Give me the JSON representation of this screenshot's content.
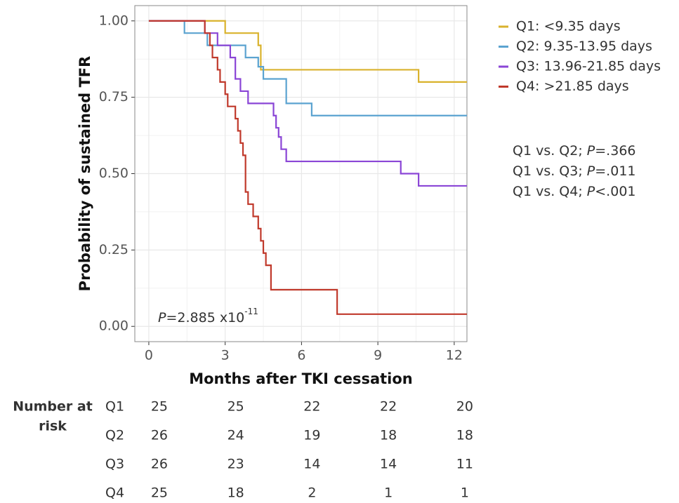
{
  "chart_data": {
    "type": "step",
    "xlabel": "Months after TKI cessation",
    "ylabel": "Probability  of sustained TFR",
    "xlim": [
      -0.55,
      12.5
    ],
    "ylim": [
      -0.05,
      1.05
    ],
    "xticks": [
      0,
      3,
      6,
      9,
      12
    ],
    "yticks": [
      {
        "value": 0,
        "label": "0.00"
      },
      {
        "value": 0.25,
        "label": "0.25"
      },
      {
        "value": 0.5,
        "label": "0.50"
      },
      {
        "value": 0.75,
        "label": "0.75"
      },
      {
        "value": 1,
        "label": "1.00"
      }
    ],
    "grid": true,
    "series": [
      {
        "name": "Q1: <9.35 days",
        "color": "#d9b22c",
        "x": [
          0,
          3.0,
          4.3,
          4.4,
          10.6,
          12.5
        ],
        "values": [
          1,
          0.96,
          0.92,
          0.84,
          0.8,
          0.8
        ]
      },
      {
        "name": "Q2: 9.35-13.95 days",
        "color": "#5ba3d0",
        "x": [
          0,
          1.4,
          2.3,
          3.8,
          4.3,
          4.5,
          5.4,
          6.4,
          12.5
        ],
        "values": [
          1,
          0.96,
          0.92,
          0.88,
          0.85,
          0.81,
          0.73,
          0.69,
          0.69
        ]
      },
      {
        "name": "Q3: 13.96-21.85 days",
        "color": "#8a45d6",
        "x": [
          0,
          2.2,
          2.7,
          3.2,
          3.4,
          3.6,
          3.9,
          4.9,
          5.0,
          5.1,
          5.2,
          5.4,
          9.9,
          10.6,
          12.5
        ],
        "values": [
          1,
          0.96,
          0.92,
          0.88,
          0.81,
          0.77,
          0.73,
          0.69,
          0.65,
          0.62,
          0.58,
          0.54,
          0.5,
          0.46,
          0.46
        ]
      },
      {
        "name": "Q4: >21.85 days",
        "color": "#c0392b",
        "x": [
          0,
          2.2,
          2.4,
          2.5,
          2.7,
          2.8,
          3.0,
          3.1,
          3.4,
          3.5,
          3.6,
          3.7,
          3.8,
          3.9,
          4.1,
          4.3,
          4.4,
          4.5,
          4.6,
          4.8,
          7.4,
          12.5
        ],
        "values": [
          1,
          0.96,
          0.92,
          0.88,
          0.84,
          0.8,
          0.76,
          0.72,
          0.68,
          0.64,
          0.6,
          0.56,
          0.44,
          0.4,
          0.36,
          0.32,
          0.28,
          0.24,
          0.2,
          0.12,
          0.04,
          0.04
        ]
      }
    ],
    "annotation": {
      "p": "P",
      "text": "=2.885 x10",
      "sup": "-11"
    },
    "comparisons": [
      {
        "text": "Q1 vs. Q2; ",
        "p": "P",
        "value": "=.366"
      },
      {
        "text": "Q1 vs. Q3; ",
        "p": "P",
        "value": "=.011"
      },
      {
        "text": "Q1 vs. Q4; ",
        "p": "P",
        "value": "<.001"
      }
    ],
    "risk_table": {
      "title": [
        "Number at",
        "risk"
      ],
      "rows": [
        {
          "group": "Q1",
          "counts": [
            25,
            25,
            22,
            22,
            20
          ]
        },
        {
          "group": "Q2",
          "counts": [
            26,
            24,
            19,
            18,
            18
          ]
        },
        {
          "group": "Q3",
          "counts": [
            26,
            23,
            14,
            14,
            11
          ]
        },
        {
          "group": "Q4",
          "counts": [
            25,
            18,
            2,
            1,
            1
          ]
        }
      ]
    }
  }
}
